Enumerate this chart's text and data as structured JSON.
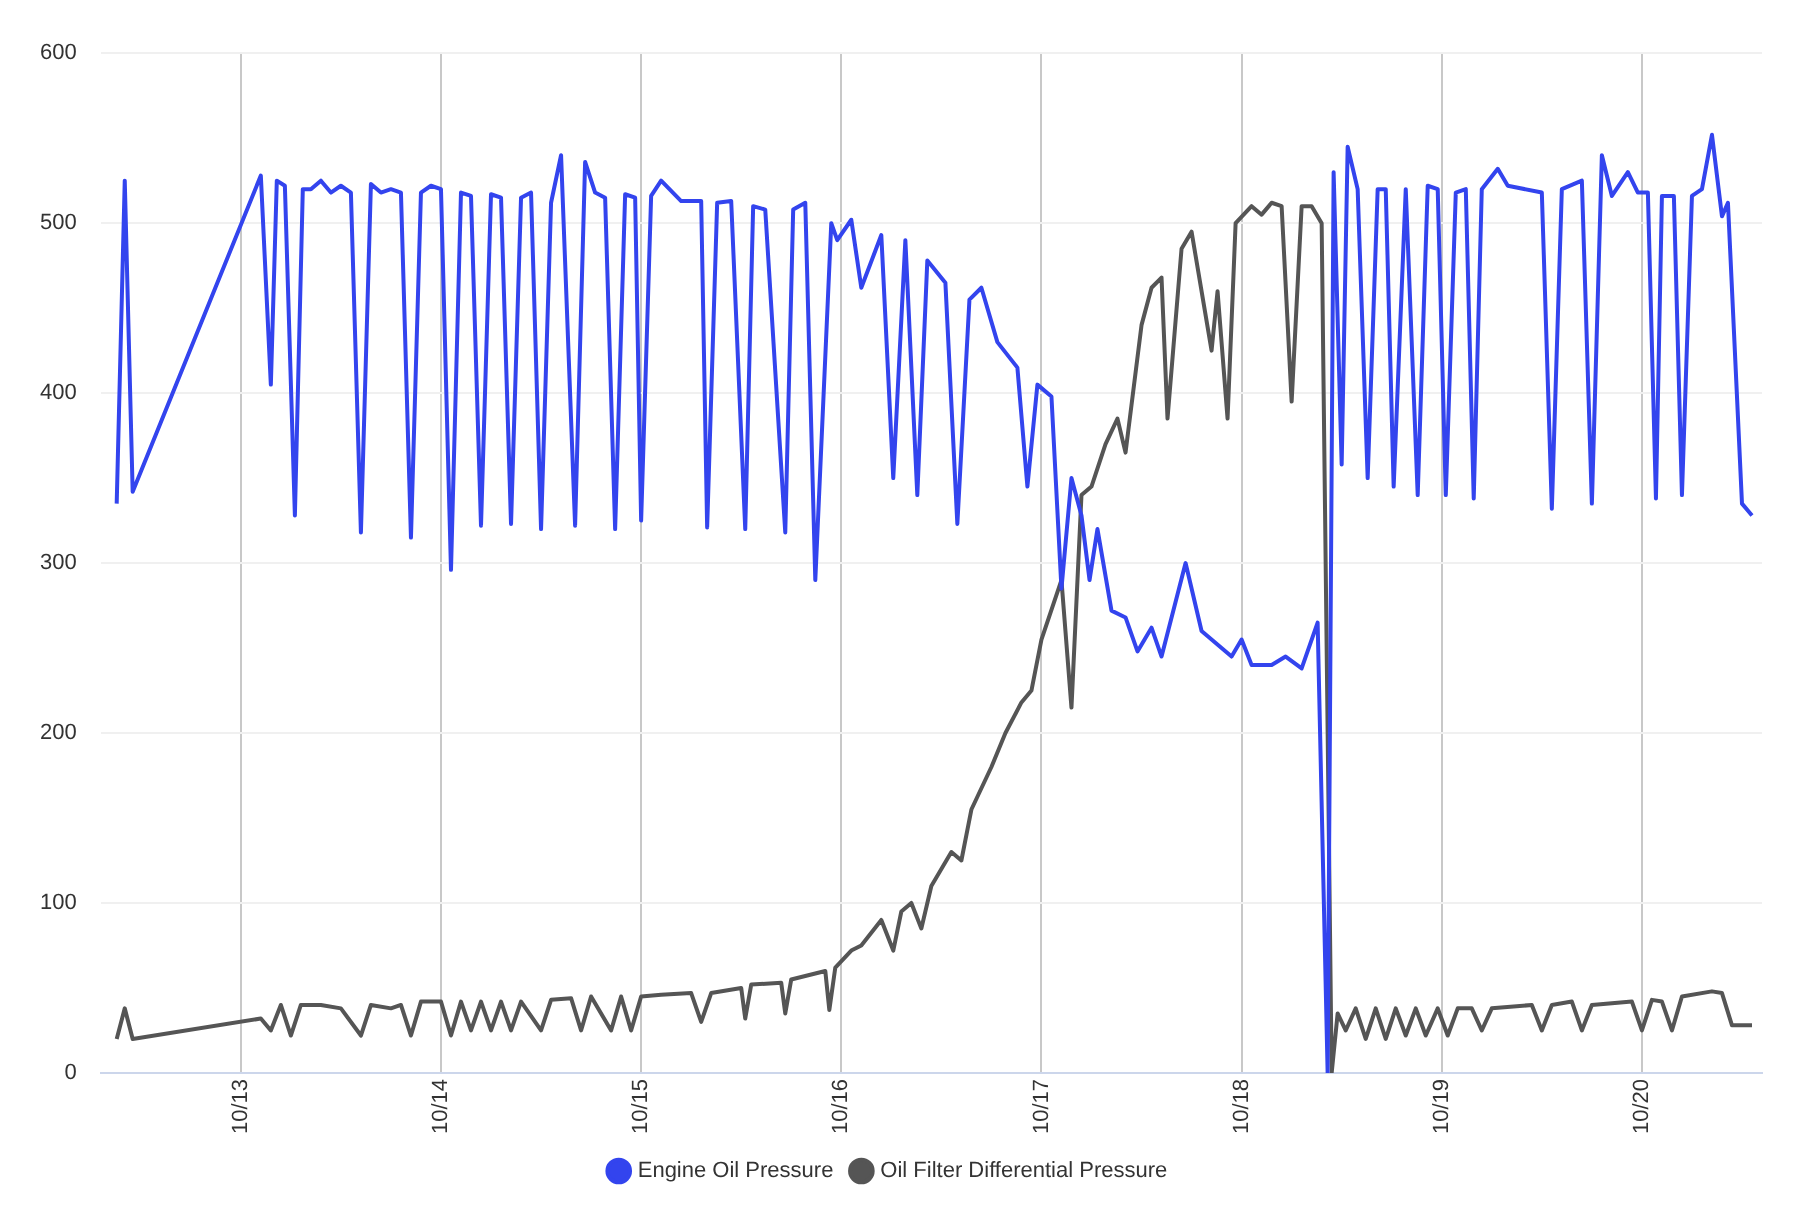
{
  "chart_data": {
    "type": "line",
    "xlim": [
      "--10-12T07:12",
      "--10-20T14:24"
    ],
    "xticks": [
      {
        "value": "--10-13",
        "label": "10/13"
      },
      {
        "value": "--10-14",
        "label": "10/14"
      },
      {
        "value": "--10-15",
        "label": "10/15"
      },
      {
        "value": "--10-16",
        "label": "10/16"
      },
      {
        "value": "--10-17",
        "label": "10/17"
      },
      {
        "value": "--10-18",
        "label": "10/18"
      },
      {
        "value": "--10-19",
        "label": "10/19"
      },
      {
        "value": "--10-20",
        "label": "10/20"
      }
    ],
    "ylim": [
      0,
      600
    ],
    "yticks": [
      0,
      100,
      200,
      300,
      400,
      500,
      600
    ],
    "grid": true,
    "legend": "bottom",
    "marker": "none",
    "line_style": "solid",
    "series": [
      {
        "name": "Engine Oil Pressure",
        "color": "#3344ee",
        "x": [
          "--10-12T09:07",
          "--10-12T10:05",
          "--10-12T11:02",
          "--10-13T02:24",
          "--10-13T03:36",
          "--10-13T04:19",
          "--10-13T05:17",
          "--10-13T06:29",
          "--10-13T07:26",
          "--10-13T08:24",
          "--10-13T09:36",
          "--10-13T10:48",
          "--10-13T12:00",
          "--10-13T13:12",
          "--10-13T14:24",
          "--10-13T15:36",
          "--10-13T16:48",
          "--10-13T18:00",
          "--10-13T19:12",
          "--10-13T20:24",
          "--10-13T21:36",
          "--10-13T22:48",
          "--10-14T00:00",
          "--10-14T01:12",
          "--10-14T02:24",
          "--10-14T03:36",
          "--10-14T04:48",
          "--10-14T06:00",
          "--10-14T07:12",
          "--10-14T08:24",
          "--10-14T09:36",
          "--10-14T10:48",
          "--10-14T12:00",
          "--10-14T13:12",
          "--10-14T14:24",
          "--10-14T16:05",
          "--10-14T17:17",
          "--10-14T18:29",
          "--10-14T19:41",
          "--10-14T20:53",
          "--10-14T22:05",
          "--10-14T23:17",
          "--10-15T00:00",
          "--10-15T01:12",
          "--10-15T02:24",
          "--10-15T04:48",
          "--10-15T07:12",
          "--10-15T07:55",
          "--10-15T09:07",
          "--10-15T10:48",
          "--10-15T12:29",
          "--10-15T13:26",
          "--10-15T14:53",
          "--10-15T17:17",
          "--10-15T18:14",
          "--10-15T19:41",
          "--10-15T20:53",
          "--10-15T22:48",
          "--10-15T23:31",
          "--10-16T01:12",
          "--10-16T02:24",
          "--10-16T04:48",
          "--10-16T06:14",
          "--10-16T07:41",
          "--10-16T09:07",
          "--10-16T10:19",
          "--10-16T12:29",
          "--10-16T13:55",
          "--10-16T15:22",
          "--10-16T16:48",
          "--10-16T18:43",
          "--10-16T21:07",
          "--10-16T22:19",
          "--10-16T23:31",
          "--10-17T01:12",
          "--10-17T02:24",
          "--10-17T03:36",
          "--10-17T04:48",
          "--10-17T05:46",
          "--10-17T06:43",
          "--10-17T08:24",
          "--10-17T10:05",
          "--10-17T11:31",
          "--10-17T13:12",
          "--10-17T14:24",
          "--10-17T17:17",
          "--10-17T19:12",
          "--10-17T22:48",
          "--10-18T00:00",
          "--10-18T01:12",
          "--10-18T03:36",
          "--10-18T05:17",
          "--10-18T07:12",
          "--10-18T09:07",
          "--10-18T10:19",
          "--10-18T11:02",
          "--10-18T12:00",
          "--10-18T12:43",
          "--10-18T13:55",
          "--10-18T15:07",
          "--10-18T16:19",
          "--10-18T17:17",
          "--10-18T18:14",
          "--10-18T19:41",
          "--10-18T21:07",
          "--10-18T22:19",
          "--10-18T23:31",
          "--10-19T00:29",
          "--10-19T01:41",
          "--10-19T02:53",
          "--10-19T03:50",
          "--10-19T04:48",
          "--10-19T06:43",
          "--10-19T07:55",
          "--10-19T12:00",
          "--10-19T13:12",
          "--10-19T14:24",
          "--10-19T16:48",
          "--10-19T18:00",
          "--10-19T19:12",
          "--10-19T20:24",
          "--10-19T22:19",
          "--10-19T23:31",
          "--10-20T00:43",
          "--10-20T01:41",
          "--10-20T02:24",
          "--10-20T03:50",
          "--10-20T04:48",
          "--10-20T06:00",
          "--10-20T07:12",
          "--10-20T08:24",
          "--10-20T09:36",
          "--10-20T10:19",
          "--10-20T12:00",
          "--10-20T13:12"
        ],
        "values": [
          335,
          525,
          342,
          528,
          405,
          525,
          522,
          328,
          520,
          520,
          525,
          518,
          522,
          518,
          318,
          523,
          518,
          520,
          518,
          315,
          518,
          522,
          520,
          296,
          518,
          516,
          322,
          517,
          515,
          323,
          515,
          518,
          320,
          512,
          540,
          322,
          536,
          518,
          515,
          320,
          517,
          515,
          325,
          516,
          525,
          513,
          513,
          321,
          512,
          513,
          320,
          510,
          508,
          318,
          508,
          512,
          290,
          500,
          490,
          502,
          462,
          493,
          350,
          490,
          340,
          478,
          465,
          323,
          455,
          462,
          430,
          415,
          345,
          405,
          398,
          285,
          350,
          328,
          290,
          320,
          272,
          268,
          248,
          262,
          245,
          300,
          260,
          245,
          255,
          240,
          240,
          245,
          238,
          265,
          0,
          530,
          358,
          545,
          520,
          350,
          520,
          520,
          345,
          520,
          340,
          522,
          520,
          340,
          518,
          520,
          338,
          520,
          532,
          522,
          518,
          332,
          520,
          525,
          335,
          540,
          516,
          530,
          518,
          518,
          338,
          516,
          516,
          340,
          516,
          520,
          552,
          504,
          512,
          335,
          328
        ]
      },
      {
        "name": "Oil Filter Differential Pressure",
        "color": "#555555",
        "x": [
          "--10-12T09:07",
          "--10-12T10:05",
          "--10-12T11:02",
          "--10-13T02:24",
          "--10-13T03:36",
          "--10-13T04:48",
          "--10-13T06:00",
          "--10-13T07:12",
          "--10-13T09:36",
          "--10-13T12:00",
          "--10-13T14:24",
          "--10-13T15:36",
          "--10-13T18:00",
          "--10-13T19:12",
          "--10-13T20:24",
          "--10-13T21:36",
          "--10-14T00:00",
          "--10-14T01:12",
          "--10-14T02:24",
          "--10-14T03:36",
          "--10-14T04:48",
          "--10-14T06:00",
          "--10-14T07:12",
          "--10-14T08:24",
          "--10-14T09:36",
          "--10-14T12:00",
          "--10-14T13:12",
          "--10-14T15:36",
          "--10-14T16:48",
          "--10-14T18:00",
          "--10-14T20:24",
          "--10-14T21:36",
          "--10-14T22:48",
          "--10-15T00:00",
          "--10-15T02:24",
          "--10-15T06:00",
          "--10-15T07:12",
          "--10-15T08:24",
          "--10-15T12:00",
          "--10-15T12:29",
          "--10-15T13:12",
          "--10-15T16:48",
          "--10-15T17:17",
          "--10-15T18:00",
          "--10-15T22:05",
          "--10-15T22:34",
          "--10-15T23:17",
          "--10-16T01:12",
          "--10-16T02:24",
          "--10-16T04:48",
          "--10-16T06:14",
          "--10-16T07:12",
          "--10-16T08:24",
          "--10-16T09:36",
          "--10-16T10:48",
          "--10-16T13:12",
          "--10-16T14:24",
          "--10-16T15:36",
          "--10-16T18:00",
          "--10-16T19:41",
          "--10-16T21:36",
          "--10-16T22:48",
          "--10-17T00:00",
          "--10-17T02:24",
          "--10-17T03:36",
          "--10-17T04:48",
          "--10-17T06:00",
          "--10-17T07:41",
          "--10-17T09:07",
          "--10-17T10:05",
          "--10-17T12:00",
          "--10-17T13:12",
          "--10-17T14:24",
          "--10-17T15:07",
          "--10-17T16:48",
          "--10-17T18:00",
          "--10-17T20:24",
          "--10-17T21:07",
          "--10-17T22:19",
          "--10-17T23:17",
          "--10-18T01:12",
          "--10-18T02:24",
          "--10-18T03:36",
          "--10-18T04:48",
          "--10-18T06:00",
          "--10-18T07:12",
          "--10-18T08:24",
          "--10-18T09:36",
          "--10-18T10:48",
          "--10-18T11:31",
          "--10-18T12:29",
          "--10-18T13:41",
          "--10-18T14:53",
          "--10-18T16:05",
          "--10-18T17:17",
          "--10-18T18:29",
          "--10-18T19:41",
          "--10-18T20:53",
          "--10-18T22:05",
          "--10-18T23:31",
          "--10-19T00:43",
          "--10-19T01:55",
          "--10-19T03:36",
          "--10-19T04:48",
          "--10-19T06:00",
          "--10-19T10:48",
          "--10-19T12:00",
          "--10-19T13:12",
          "--10-19T15:36",
          "--10-19T16:48",
          "--10-19T18:00",
          "--10-19T22:48",
          "--10-20T00:00",
          "--10-20T01:12",
          "--10-20T02:24",
          "--10-20T03:36",
          "--10-20T04:48",
          "--10-20T08:24",
          "--10-20T09:36",
          "--10-20T10:48",
          "--10-20T13:12"
        ],
        "values": [
          20,
          38,
          20,
          32,
          25,
          40,
          22,
          40,
          40,
          38,
          22,
          40,
          38,
          40,
          22,
          42,
          42,
          22,
          42,
          25,
          42,
          25,
          42,
          25,
          42,
          25,
          43,
          44,
          25,
          45,
          25,
          45,
          25,
          45,
          46,
          47,
          30,
          47,
          50,
          32,
          52,
          53,
          35,
          55,
          60,
          37,
          62,
          72,
          75,
          90,
          72,
          95,
          100,
          85,
          110,
          130,
          125,
          155,
          180,
          200,
          218,
          225,
          255,
          290,
          215,
          340,
          345,
          370,
          385,
          365,
          440,
          462,
          468,
          385,
          485,
          495,
          425,
          460,
          385,
          500,
          510,
          505,
          512,
          510,
          395,
          510,
          510,
          500,
          0,
          35,
          25,
          38,
          20,
          38,
          20,
          38,
          22,
          38,
          22,
          38,
          22,
          38,
          38,
          25,
          38,
          40,
          25,
          40,
          42,
          25,
          40,
          42,
          25,
          43,
          42,
          25,
          45,
          48,
          47,
          28,
          28
        ]
      }
    ]
  }
}
